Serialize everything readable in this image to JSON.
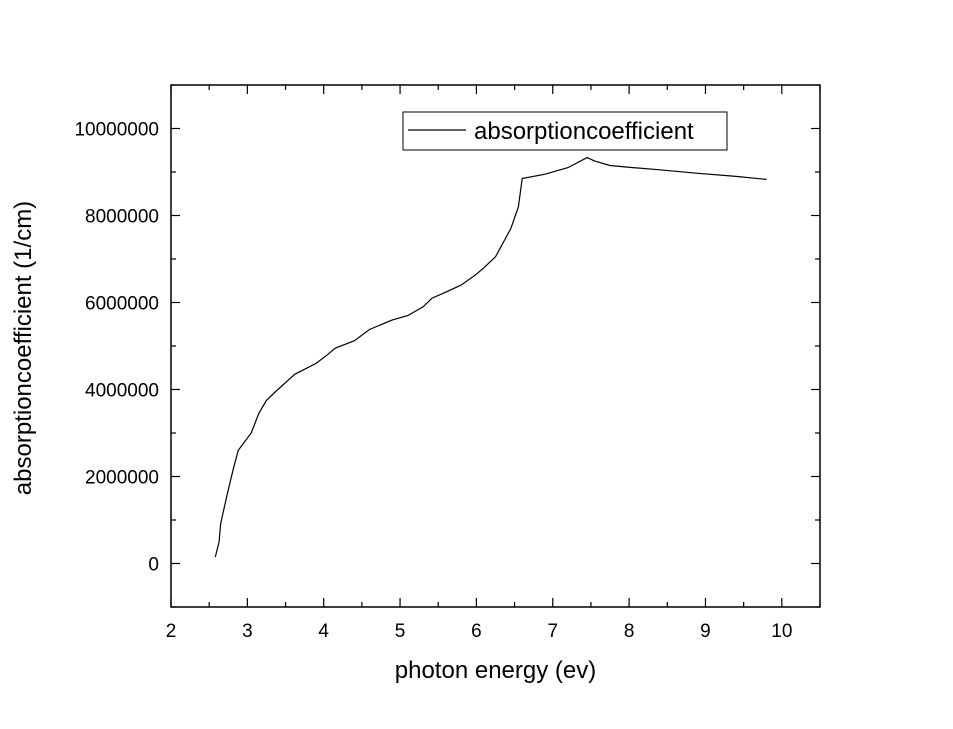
{
  "chart_data": {
    "type": "line",
    "xlabel": "photon energy (ev)",
    "ylabel": "absorptioncoefficient (1/cm)",
    "xlim": [
      2,
      10.5
    ],
    "ylim": [
      -1000000,
      11000000
    ],
    "x_ticks": [
      2,
      3,
      4,
      5,
      6,
      7,
      8,
      9,
      10
    ],
    "x_tick_labels": [
      "2",
      "3",
      "4",
      "5",
      "6",
      "7",
      "8",
      "9",
      "10"
    ],
    "y_ticks": [
      0,
      2000000,
      4000000,
      6000000,
      8000000,
      10000000
    ],
    "y_tick_labels": [
      "0",
      "2000000",
      "4000000",
      "6000000",
      "8000000",
      "10000000"
    ],
    "legend_position": "top-right",
    "grid": false,
    "series": [
      {
        "name": "absorptioncoefficient",
        "color": "#000000",
        "x": [
          2.58,
          2.63,
          2.65,
          2.68,
          2.75,
          2.82,
          2.88,
          3.05,
          3.15,
          3.25,
          3.4,
          3.62,
          3.9,
          4.05,
          4.15,
          4.4,
          4.6,
          4.9,
          5.1,
          5.3,
          5.42,
          5.55,
          5.8,
          6.0,
          6.1,
          6.25,
          6.45,
          6.55,
          6.6,
          6.9,
          7.2,
          7.45,
          7.55,
          7.75,
          8.05,
          8.4,
          8.9,
          9.4,
          9.8
        ],
        "y": [
          150000,
          500000,
          900000,
          1150000,
          1700000,
          2200000,
          2600000,
          3000000,
          3450000,
          3750000,
          4000000,
          4350000,
          4600000,
          4800000,
          4950000,
          5120000,
          5380000,
          5600000,
          5700000,
          5900000,
          6100000,
          6200000,
          6400000,
          6650000,
          6800000,
          7050000,
          7700000,
          8200000,
          8850000,
          8950000,
          9100000,
          9330000,
          9250000,
          9150000,
          9100000,
          9050000,
          8970000,
          8900000,
          8830000
        ]
      }
    ]
  }
}
